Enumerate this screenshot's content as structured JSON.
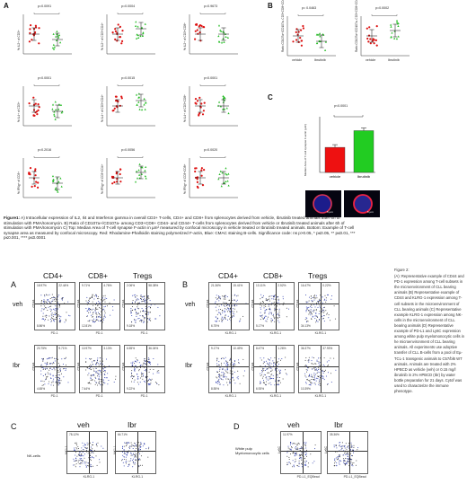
{
  "fig1": {
    "panel_A": "A",
    "panel_B": "B",
    "panel_C": "C",
    "dot_plots": [
      {
        "p": "p=0.0091",
        "ylabel": "% IL2+ of CD3+"
      },
      {
        "p": "p=0.0004",
        "ylabel": "% IL2+ of CD3+CD4+"
      },
      {
        "p": "p=0.9673",
        "ylabel": "% IL2+ of CD3+CD8+"
      },
      {
        "p": "p<0.0001",
        "ylabel": "% IL4+ of CD3+"
      },
      {
        "p": "p=0.0015",
        "ylabel": "% IL4+ of CD3+CD4+"
      },
      {
        "p": "p<0.0001",
        "ylabel": "% IL4+ of CD3+CD8+"
      },
      {
        "p": "p=0.2016",
        "ylabel": "% IFNg+ of CD3+"
      },
      {
        "p": "p=0.0056",
        "ylabel": "% IFNg+ of CD3+CD4+"
      },
      {
        "p": "p=0.0020",
        "ylabel": "% IFNg+ of CD3+CD8+"
      }
    ],
    "b_plots": [
      {
        "p": "p= 0.0463",
        "ylabel": "Ratio CD107a+/CD107a- CD3+CD8+CD44+"
      },
      {
        "p": "p=0.0002",
        "ylabel": "Ratio CD107a+/CD107a- CD3+CD8+CD44-"
      }
    ],
    "bar_chart": {
      "p": "p<0.0001",
      "ylabel": "Median Area of T-cell synapse F-actin (µm²)",
      "categories": [
        "vehicle",
        "Ibrutinib"
      ]
    },
    "scale_labels": [
      "5 µm",
      "5 µm"
    ],
    "caption_bold": "Figure1:",
    "caption": " A) Intracellular expression of IL2, Il4 and Interferon gamma in overall CD3+ T-cells, CD4+ and CD8+ from splenocytes derived from vehicle, Ibrutinib treated animals after 6h of stimulation with PMA/Ionomycin. B) Ratio of CD107a+/CD107a- among CD3+CD8+ CD44- and CD44+ T-cells from splenocytes derived from vehicle or Ibrutinib treated animals after 6h of stimulation with PMA/Ionomycin C) Top: Median Area of T-cell synapse F-actin in µm² measured by confocal microscopy in vehicle treated or Ibrutinib treated animals. Bottom: Example of T-cell synapse area as measured by confocal microscopy. Red: Rhodamine-Phalloidin staining polymerized F-actin, Blue: CMAC staining B-cells. Significance code: ns p>0.05, * p≤0.05, ** p≤0.01, *** p≤0.001, **** p≤0.0001"
  },
  "chart_data": [
    {
      "type": "bar",
      "categories": [
        "vehicle",
        "Ibrutinib"
      ],
      "values": [
        1.8,
        3.0
      ],
      "ylabel": "Median Area of T-cell synapse F-actin (µm²)",
      "ylim": [
        0,
        4
      ],
      "colors": [
        "#ee1111",
        "#22cc22"
      ]
    }
  ],
  "fig2": {
    "panel_A": "A",
    "panel_B": "B",
    "panel_C": "C",
    "panel_D": "D",
    "cols_A": [
      "CD4+",
      "CD8+",
      "Tregs"
    ],
    "cols_B": [
      "CD4+",
      "CD8+",
      "Tregs"
    ],
    "rows": [
      "veh",
      "Ibr"
    ],
    "cols_C": [
      "veh",
      "Ibr"
    ],
    "cols_D": [
      "veh",
      "Ibr"
    ],
    "nk_label": "NK-cells",
    "d_label": "White pulp Myelomonocytic cells",
    "axis_A_y": "CD44",
    "axis_A_x": "PD-1",
    "axis_B_x": "KLRG-1",
    "axis_C_y": "NK1.1",
    "axis_C_x": "KLRG-1",
    "axis_D_y": "Ly6C",
    "axis_D_x": "PD-L1_EQBead",
    "quad_A": [
      [
        "18.97%",
        "22.44%",
        "8.86%"
      ],
      [
        "9.71%",
        "4.76%",
        "12.81%"
      ],
      [
        "2.06%",
        "58.38%",
        "9.18%"
      ],
      [
        "23.75%",
        "9.71%",
        "4.65%"
      ],
      [
        "10.97%",
        "3.13%",
        "7.44%"
      ],
      [
        "6.55%",
        "36.04%",
        "9.22%"
      ]
    ],
    "quad_B": [
      [
        "21.36%",
        "15.41%",
        "6.75%"
      ],
      [
        "13.11%",
        "2.52%",
        "5.17%"
      ],
      [
        "16.47%",
        "0.22%",
        "34.13%"
      ],
      [
        "9.17%",
        "10.49%",
        "8.55%"
      ],
      [
        "8.47%",
        "1.26%",
        "6.93%"
      ],
      [
        "36.37%",
        "37.93%",
        "10.39%"
      ]
    ],
    "quad_C": [
      "78.12%",
      "64.71%"
    ],
    "quad_D": [
      "11.97%",
      "35.36%"
    ],
    "caption_title": "Figure 2:",
    "caption": "(A): Representative example of CD44 and PD-1 expression among T-cell subsets in the microenvironment of CLL bearing animals (B) Representative example of CD44 and KLRG-1 expression among T-cell subsets in the microenvironment of CLL bearing animals (C) Representative example KLRG-1 expression among NK-cells in the microenvironment of CLL bearing animals (D) Representative example of PD-L1 and Ly6C expression among white pulp myelomonocytic cells in he microenvironment of CLL bearing animals. All experiments use adoptive transfer of CLL B-cells from a pool of Eµ-TCL-1 transgenic animals to C57/bl6 WT animals. Animals are treated with 2% HPBCD as vehicle (veh) or 0.15 mg/l ibrutinib in 2% HPBCD (Ibr) by water bottle preparation for 21 days. Cytof was used to characterize the immune phenotype."
  }
}
